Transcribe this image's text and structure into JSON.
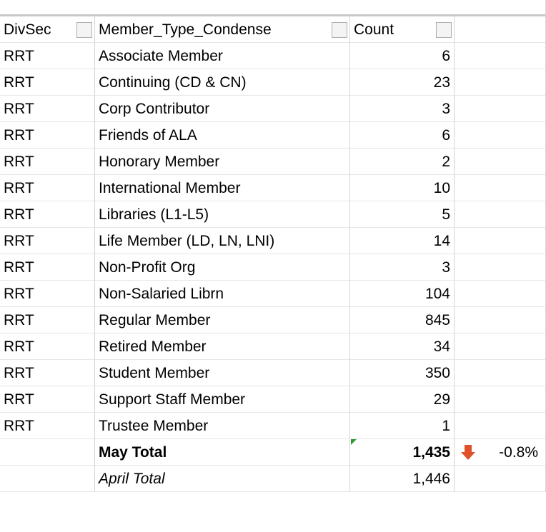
{
  "table": {
    "header": [
      "DivSec",
      "Member_Type_Condense",
      "Count"
    ],
    "rows": [
      [
        "RRT",
        "Associate Member",
        6
      ],
      [
        "RRT",
        "Continuing (CD & CN)",
        23
      ],
      [
        "RRT",
        "Corp Contributor",
        3
      ],
      [
        "RRT",
        "Friends of ALA",
        6
      ],
      [
        "RRT",
        "Honorary Member",
        2
      ],
      [
        "RRT",
        "International Member",
        10
      ],
      [
        "RRT",
        "Libraries (L1-L5)",
        5
      ],
      [
        "RRT",
        "Life Member (LD, LN, LNI)",
        14
      ],
      [
        "RRT",
        "Non-Profit Org",
        3
      ],
      [
        "RRT",
        "Non-Salaried Librn",
        104
      ],
      [
        "RRT",
        "Regular Member",
        845
      ],
      [
        "RRT",
        "Retired Member",
        34
      ],
      [
        "RRT",
        "Student Member",
        350
      ],
      [
        "RRT",
        "Support Staff Member",
        29
      ],
      [
        "RRT",
        "Trustee Member",
        1
      ]
    ],
    "totals": [
      {
        "label": "May Total",
        "count": {
          "value": 1435,
          "label": "1,435"
        },
        "change": "-0.8%"
      },
      {
        "label": "April Total",
        "count": {
          "value": 1446,
          "label": "1,446"
        }
      }
    ]
  }
}
